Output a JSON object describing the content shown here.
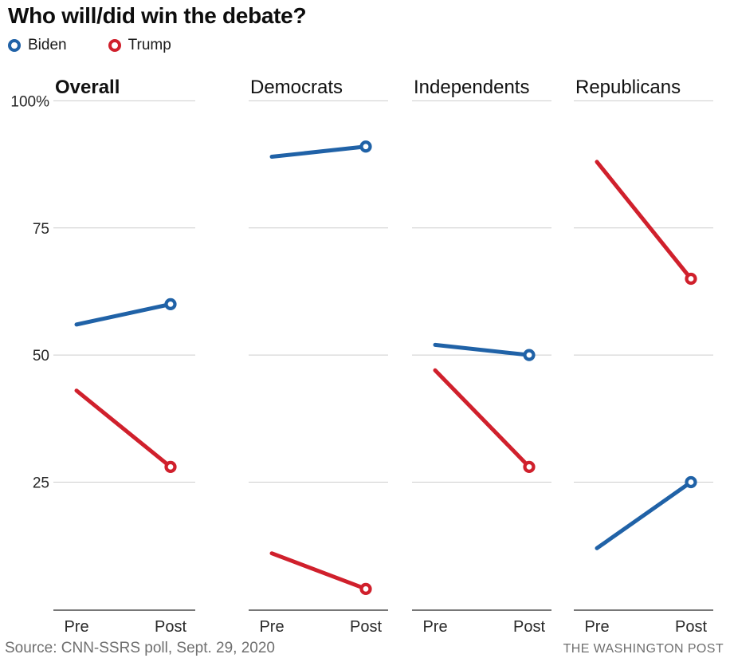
{
  "header": {
    "title": "Who will/did win the debate?",
    "legend": [
      {
        "name": "Biden",
        "color": "#2062a7"
      },
      {
        "name": "Trump",
        "color": "#d0202c"
      }
    ]
  },
  "footer": {
    "source": "Source: CNN-SSRS poll, Sept. 29, 2020",
    "credit": "THE WASHINGTON POST"
  },
  "chart_data": {
    "type": "line",
    "title": "Who will/did win the debate?",
    "x_categories": [
      "Pre",
      "Post"
    ],
    "y_axis": {
      "ticks": [
        100,
        75,
        50,
        25
      ],
      "tick_labels": [
        "100%",
        "75",
        "50",
        "25"
      ],
      "range": [
        0,
        100
      ]
    },
    "grid": true,
    "legend_position": "top-left",
    "marker": "open-circle-at-post-point",
    "colors": {
      "Biden": "#2062a7",
      "Trump": "#d0202c"
    },
    "panels": [
      {
        "title": "Overall",
        "emphasis": true,
        "series": [
          {
            "name": "Biden",
            "values": [
              56,
              60
            ]
          },
          {
            "name": "Trump",
            "values": [
              43,
              28
            ]
          }
        ]
      },
      {
        "title": "Democrats",
        "emphasis": false,
        "series": [
          {
            "name": "Biden",
            "values": [
              89,
              91
            ]
          },
          {
            "name": "Trump",
            "values": [
              11,
              4
            ]
          }
        ]
      },
      {
        "title": "Independents",
        "emphasis": false,
        "series": [
          {
            "name": "Biden",
            "values": [
              52,
              50
            ]
          },
          {
            "name": "Trump",
            "values": [
              47,
              28
            ]
          }
        ]
      },
      {
        "title": "Republicans",
        "emphasis": false,
        "series": [
          {
            "name": "Biden",
            "values": [
              12,
              25
            ]
          },
          {
            "name": "Trump",
            "values": [
              88,
              65
            ]
          }
        ]
      }
    ]
  }
}
